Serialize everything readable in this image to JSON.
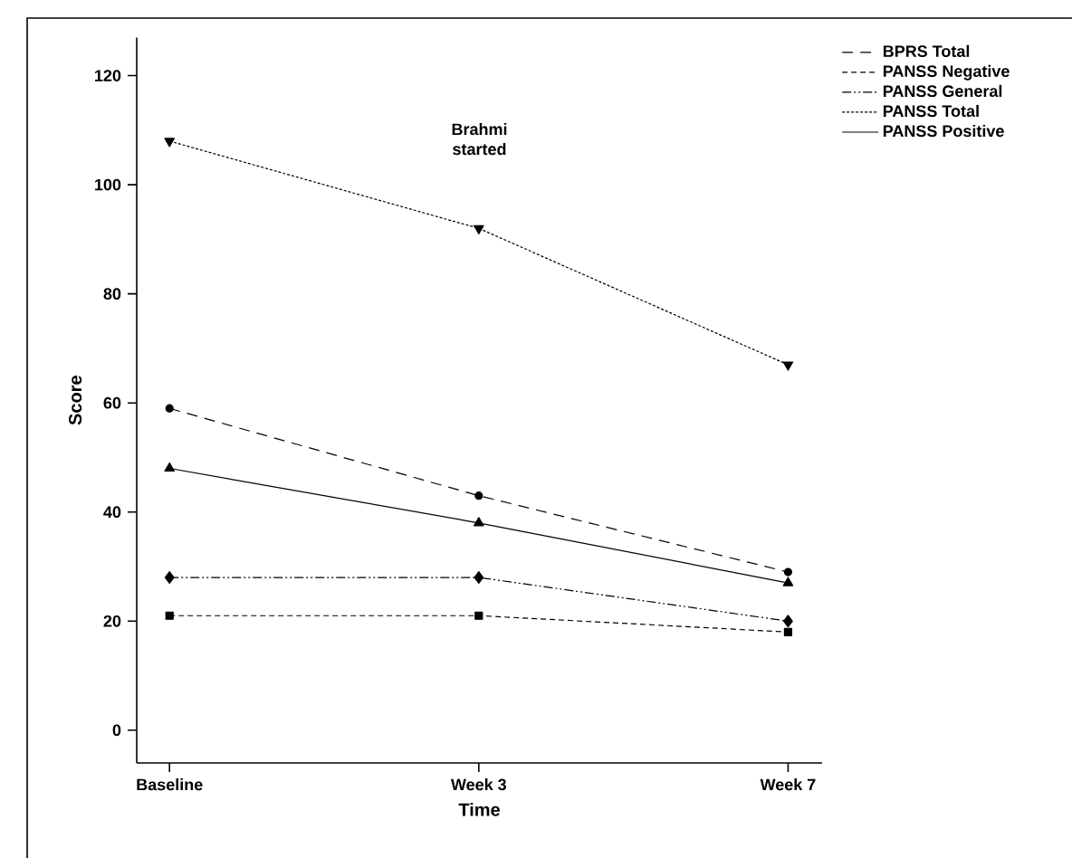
{
  "chart_data": {
    "type": "line",
    "xlabel": "Time",
    "ylabel": "Score",
    "categories": [
      "Baseline",
      "Week 3",
      "Week 7"
    ],
    "ylim": [
      -6,
      127
    ],
    "yticks": [
      0,
      20,
      40,
      60,
      80,
      100,
      120
    ],
    "legend": "top right",
    "grid": false,
    "annotations": [
      "Brahmi started"
    ],
    "series": [
      {
        "name": "BPRS Total",
        "color": "#000000",
        "values": [
          59,
          43,
          29
        ],
        "marker": "circle",
        "line_style": "dashed"
      },
      {
        "name": "PANSS Negative",
        "color": "#000000",
        "values": [
          21,
          21,
          18
        ],
        "marker": "square",
        "line_style": "dashed"
      },
      {
        "name": "PANSS General",
        "color": "#000000",
        "values": [
          28,
          28,
          20
        ],
        "marker": "diamond",
        "line_style": "dotted"
      },
      {
        "name": "PANSS Total",
        "color": "#000000",
        "values": [
          108,
          92,
          67
        ],
        "marker": "triangle down",
        "line_style": "dotted"
      },
      {
        "name": "PANSS Positive",
        "color": "#000000",
        "values": [
          48,
          38,
          27
        ],
        "marker": "triangle",
        "line_style": "solid"
      }
    ]
  }
}
